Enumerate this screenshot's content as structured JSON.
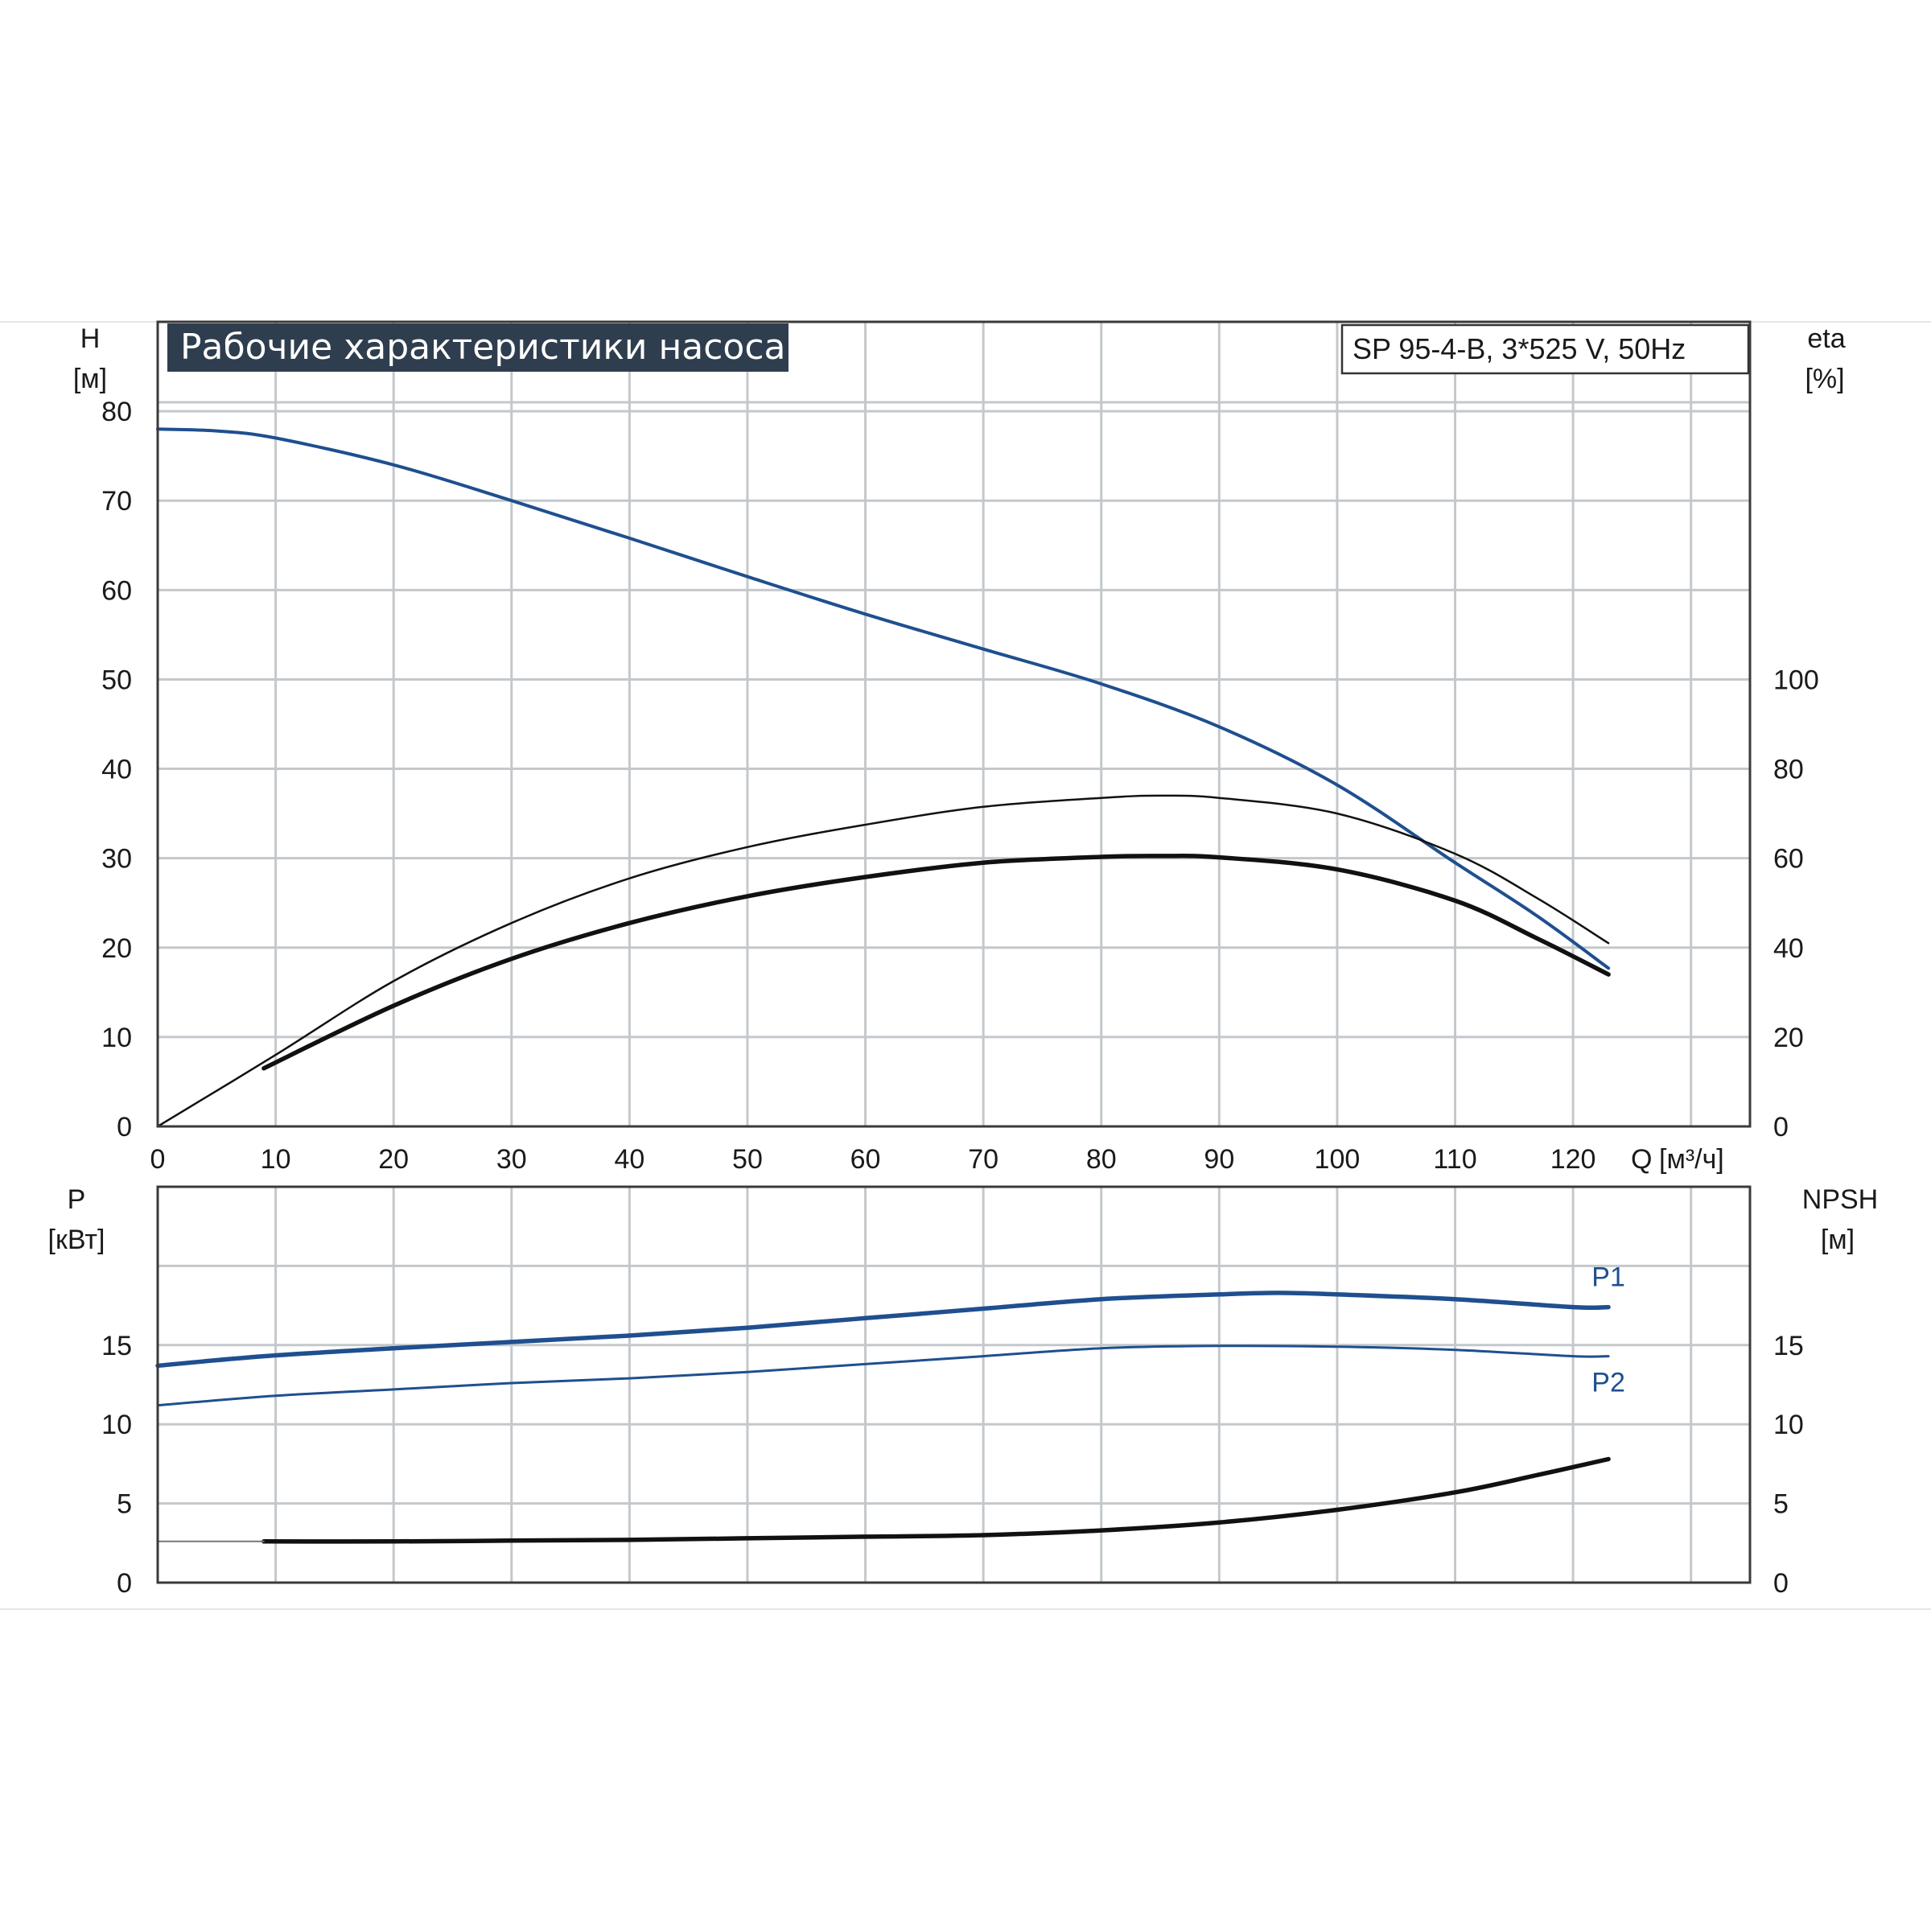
{
  "chart_data": [
    {
      "type": "line",
      "title": "Рабочие характеристики насоса",
      "model": "SP 95-4-B, 3*525 V, 50Hz",
      "x_label_q": "Q",
      "x_unit": "[м³/ч]",
      "xlim": [
        0,
        135
      ],
      "x_ticks": [
        "0",
        "10",
        "20",
        "30",
        "40",
        "50",
        "60",
        "70",
        "80",
        "90",
        "100",
        "110",
        "120"
      ],
      "left_axis": {
        "name": "H",
        "unit": "[м]",
        "ylim": [
          0,
          90
        ],
        "ticks": [
          "0",
          "10",
          "20",
          "30",
          "40",
          "50",
          "60",
          "70",
          "80"
        ]
      },
      "right_axis": {
        "name": "eta",
        "unit": "[%]",
        "ylim": [
          0,
          180
        ],
        "ticks": [
          "0",
          "20",
          "40",
          "60",
          "80",
          "100"
        ]
      },
      "grid": true,
      "series": [
        {
          "axis": "left",
          "color": "#1f4f8f",
          "width": 4,
          "x": [
            0,
            5,
            10,
            20,
            30,
            40,
            50,
            60,
            70,
            80,
            90,
            100,
            110,
            117,
            123
          ],
          "y": [
            78,
            77.8,
            77,
            74,
            70,
            65.8,
            61.5,
            57.3,
            53.4,
            49.5,
            44.7,
            38.2,
            29.5,
            23.5,
            17.7
          ]
        },
        {
          "axis": "right",
          "color": "#111111",
          "width": 2.5,
          "x": [
            0,
            10,
            20,
            30,
            40,
            50,
            60,
            70,
            80,
            85,
            90,
            100,
            110,
            117,
            123
          ],
          "y": [
            0,
            16,
            32.5,
            45.5,
            55.5,
            62.5,
            67.5,
            71.5,
            73.5,
            74,
            73.5,
            70,
            61,
            51,
            41
          ]
        },
        {
          "axis": "right",
          "color": "#111111",
          "width": 5.5,
          "x": [
            9,
            20,
            30,
            40,
            50,
            60,
            70,
            80,
            85,
            90,
            100,
            110,
            117,
            123
          ],
          "y": [
            13,
            27,
            37.5,
            45.5,
            51.5,
            55.8,
            59,
            60.3,
            60.5,
            60.2,
            57.5,
            50.5,
            42,
            34
          ]
        }
      ]
    },
    {
      "type": "line",
      "xlim": [
        0,
        135
      ],
      "left_axis": {
        "name": "P",
        "unit": "[кВт]",
        "ylim": [
          0,
          25
        ],
        "ticks": [
          "0",
          "5",
          "10",
          "15"
        ]
      },
      "right_axis": {
        "name": "NPSH",
        "unit": "[м]",
        "ylim": [
          0,
          25
        ],
        "ticks": [
          "0",
          "5",
          "10",
          "15"
        ]
      },
      "grid": true,
      "series": [
        {
          "name": "P1",
          "axis": "left",
          "color": "#1f4f8f",
          "width": 5.5,
          "x": [
            0,
            9,
            20,
            30,
            40,
            50,
            60,
            70,
            80,
            90,
            95,
            100,
            110,
            120,
            123
          ],
          "y": [
            13.7,
            14.3,
            14.8,
            15.2,
            15.6,
            16.1,
            16.7,
            17.3,
            17.9,
            18.2,
            18.3,
            18.2,
            17.9,
            17.4,
            17.4
          ]
        },
        {
          "name": "P2",
          "axis": "left",
          "color": "#1f4f8f",
          "width": 3,
          "x": [
            0,
            10,
            20,
            30,
            40,
            50,
            60,
            70,
            80,
            90,
            100,
            110,
            120,
            123
          ],
          "y": [
            11.2,
            11.8,
            12.2,
            12.6,
            12.9,
            13.3,
            13.8,
            14.3,
            14.8,
            14.95,
            14.9,
            14.7,
            14.3,
            14.3
          ]
        },
        {
          "axis": "right",
          "color": "#111111",
          "width": 5.5,
          "x": [
            9,
            20,
            30,
            40,
            50,
            60,
            70,
            80,
            90,
            100,
            110,
            117,
            123
          ],
          "y": [
            2.6,
            2.6,
            2.65,
            2.7,
            2.8,
            2.9,
            3.0,
            3.3,
            3.8,
            4.6,
            5.7,
            6.8,
            7.8
          ]
        },
        {
          "axis": "right",
          "color": "#777777",
          "width": 2,
          "x": [
            0,
            9
          ],
          "y": [
            2.6,
            2.6
          ]
        }
      ]
    }
  ]
}
